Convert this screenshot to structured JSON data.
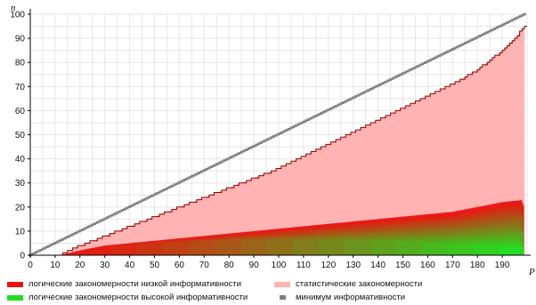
{
  "chart_data": {
    "type": "area",
    "xlabel": "P",
    "ylabel": "n",
    "xlim": [
      0,
      200
    ],
    "ylim": [
      0,
      100
    ],
    "x_ticks": [
      "0",
      "10",
      "20",
      "30",
      "40",
      "50",
      "60",
      "70",
      "80",
      "90",
      "100",
      "110",
      "120",
      "130",
      "140",
      "150",
      "160",
      "170",
      "180",
      "190"
    ],
    "y_ticks": [
      "0",
      "10",
      "20",
      "30",
      "40",
      "50",
      "60",
      "70",
      "80",
      "90",
      "100"
    ],
    "grid": true,
    "legend_position": "bottom",
    "series": [
      {
        "name": "логические закономерности низкой информативности",
        "color": "#ee1111",
        "note_values": "lower stacked band start"
      },
      {
        "name": "логические закономерности высокой информативности",
        "color": "#22dd22"
      },
      {
        "name": "статистические закономерности",
        "color": "#ffb3b3",
        "x": [
          12,
          20,
          30,
          40,
          50,
          60,
          70,
          80,
          90,
          100,
          110,
          120,
          130,
          140,
          150,
          160,
          170,
          180,
          185,
          190,
          195,
          199
        ],
        "y": [
          0,
          4,
          8,
          12,
          16,
          20,
          24,
          28,
          32,
          36,
          41,
          46,
          51,
          56,
          61,
          66,
          71,
          77,
          81,
          85,
          90,
          95
        ]
      },
      {
        "name": "минимум информативности",
        "color": "#808080",
        "x": [
          0,
          199
        ],
        "y": [
          0,
          100
        ]
      }
    ],
    "logical_bands": {
      "x": [
        12,
        20,
        30,
        40,
        50,
        60,
        70,
        80,
        90,
        100,
        110,
        120,
        130,
        140,
        150,
        160,
        170,
        180,
        190,
        199
      ],
      "y_top": [
        0,
        2,
        4,
        5,
        6,
        7,
        8,
        9,
        10,
        11,
        12,
        13,
        14,
        15,
        16,
        17,
        18,
        20,
        22,
        23
      ]
    }
  },
  "legend": {
    "low": "логические закономерности низкой информативности",
    "high": "логические закономерности высокой информативности",
    "stat": "статистические закономерности",
    "min": "минимум информативности"
  },
  "colors": {
    "red": "#ee1111",
    "green": "#22dd22",
    "pink": "#ffb3b3",
    "gray": "#808080",
    "stat_line": "#8b0000"
  }
}
